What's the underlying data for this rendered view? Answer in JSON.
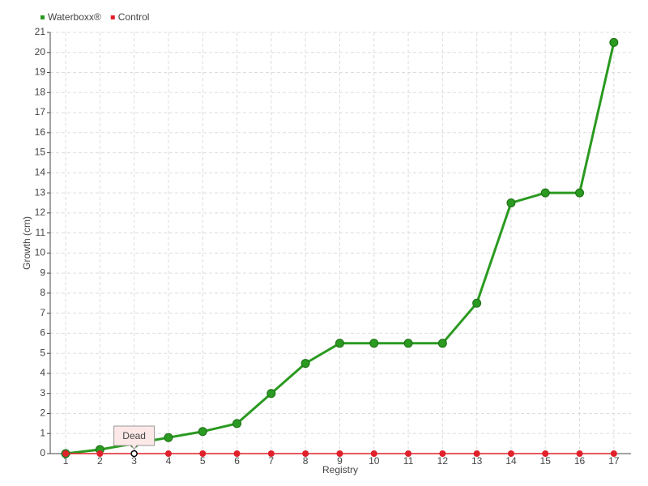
{
  "chart_data": {
    "type": "line",
    "x_label": "Registry",
    "y_label": "Growth (cm)",
    "x": [
      1,
      2,
      3,
      4,
      5,
      6,
      7,
      8,
      9,
      10,
      11,
      12,
      13,
      14,
      15,
      16,
      17
    ],
    "series": [
      {
        "name": "Waterboxx®",
        "color": "#2a9a20",
        "values": [
          0,
          0.2,
          0.5,
          0.8,
          1.1,
          1.5,
          3,
          4.5,
          5.5,
          5.5,
          5.5,
          5.5,
          7.5,
          12.5,
          13,
          13,
          20.5
        ]
      },
      {
        "name": "Control",
        "color": "#e0202a",
        "values": [
          0,
          0,
          0,
          0,
          0,
          0,
          0,
          0,
          0,
          0,
          0,
          0,
          0,
          0,
          0,
          0,
          0
        ]
      }
    ],
    "annotations": [
      {
        "text": "Dead",
        "x": 3,
        "y": 0
      }
    ],
    "xlim": [
      0.55,
      17.5
    ],
    "ylim": [
      0,
      21
    ],
    "xticks": [
      1,
      2,
      3,
      4,
      5,
      6,
      7,
      8,
      9,
      10,
      11,
      12,
      13,
      14,
      15,
      16,
      17
    ],
    "yticks": [
      0,
      1,
      2,
      3,
      4,
      5,
      6,
      7,
      8,
      9,
      10,
      11,
      12,
      13,
      14,
      15,
      16,
      17,
      18,
      19,
      20,
      21
    ],
    "grid": true,
    "legend": "top-left"
  }
}
